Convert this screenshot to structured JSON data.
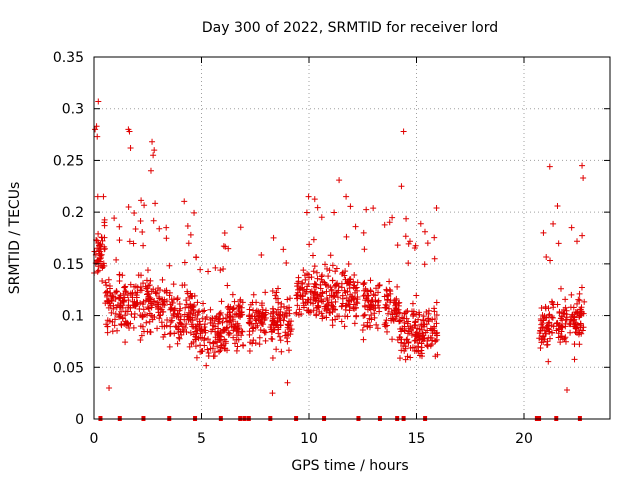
{
  "chart_data": {
    "type": "scatter",
    "title": "Day 300 of 2022, SRMTID for receiver lord",
    "xlabel": "GPS time / hours",
    "ylabel": "SRMTID / TECUs",
    "xlim": [
      0,
      24
    ],
    "ylim": [
      0,
      0.35
    ],
    "x_ticks": [
      {
        "value": 0,
        "label": "0"
      },
      {
        "value": 5,
        "label": "5"
      },
      {
        "value": 10,
        "label": "10"
      },
      {
        "value": 15,
        "label": "15"
      },
      {
        "value": 20,
        "label": "20"
      }
    ],
    "y_ticks": [
      {
        "value": 0,
        "label": "0"
      },
      {
        "value": 0.05,
        "label": "0.05"
      },
      {
        "value": 0.1,
        "label": "0.1"
      },
      {
        "value": 0.15,
        "label": "0.15"
      },
      {
        "value": 0.2,
        "label": "0.2"
      },
      {
        "value": 0.25,
        "label": "0.25"
      },
      {
        "value": 0.3,
        "label": "0.3"
      },
      {
        "value": 0.35,
        "label": "0.35"
      }
    ],
    "grid": true,
    "marker": "+",
    "color": "#e00000",
    "data_segments": [
      [
        0.0,
        3.4
      ],
      [
        3.5,
        4.7
      ],
      [
        4.7,
        6.2
      ],
      [
        6.2,
        7.0
      ],
      [
        7.2,
        8.0
      ],
      [
        8.2,
        9.2
      ],
      [
        9.4,
        10.4
      ],
      [
        10.4,
        11.4
      ],
      [
        11.5,
        12.3
      ],
      [
        12.5,
        13.3
      ],
      [
        13.5,
        14.3
      ],
      [
        14.3,
        15.0
      ],
      [
        15.0,
        16.0
      ],
      [
        20.7,
        21.4
      ],
      [
        21.5,
        22.0
      ],
      [
        22.1,
        22.8
      ]
    ],
    "zero_markers": [
      0.3,
      1.2,
      2.3,
      3.5,
      4.7,
      5.9,
      6.8,
      7.0,
      7.2,
      8.2,
      9.4,
      10.7,
      12.3,
      13.3,
      14.1,
      14.4,
      15.4,
      20.6,
      20.7,
      21.5,
      22.6
    ],
    "notable_points": [
      {
        "x": 0.05,
        "y": 0.28
      },
      {
        "x": 0.12,
        "y": 0.283
      },
      {
        "x": 0.2,
        "y": 0.307
      },
      {
        "x": 0.15,
        "y": 0.273
      },
      {
        "x": 1.6,
        "y": 0.28
      },
      {
        "x": 1.65,
        "y": 0.278
      },
      {
        "x": 1.7,
        "y": 0.262
      },
      {
        "x": 2.7,
        "y": 0.268
      },
      {
        "x": 2.75,
        "y": 0.255
      },
      {
        "x": 2.8,
        "y": 0.26
      },
      {
        "x": 2.65,
        "y": 0.24
      },
      {
        "x": 14.4,
        "y": 0.278
      },
      {
        "x": 14.3,
        "y": 0.225
      },
      {
        "x": 21.2,
        "y": 0.244
      },
      {
        "x": 22.7,
        "y": 0.245
      },
      {
        "x": 22.75,
        "y": 0.233
      },
      {
        "x": 8.3,
        "y": 0.025
      },
      {
        "x": 0.7,
        "y": 0.03
      },
      {
        "x": 9.0,
        "y": 0.035
      },
      {
        "x": 22.0,
        "y": 0.028
      },
      {
        "x": 11.4,
        "y": 0.231
      }
    ]
  }
}
